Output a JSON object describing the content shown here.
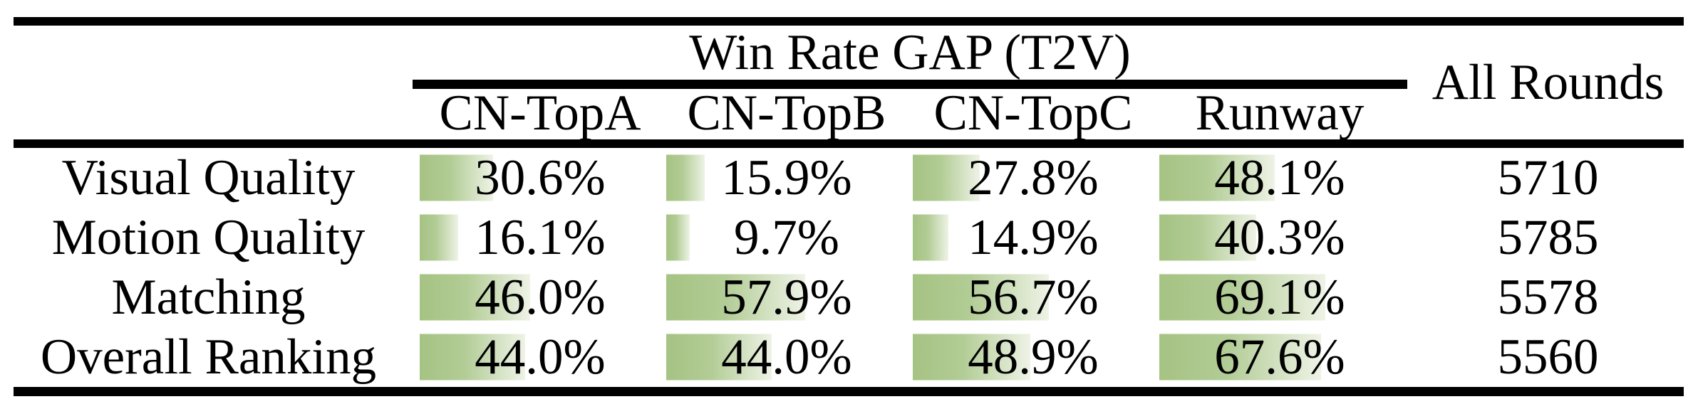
{
  "table": {
    "group_header": "Win Rate GAP (T2V)",
    "all_rounds_header": "All Rounds",
    "columns": [
      "CN-TopA",
      "CN-TopB",
      "CN-TopC",
      "Runway"
    ],
    "rows": [
      {
        "label": "Visual Quality",
        "cells": [
          "30.6%",
          "15.9%",
          "27.8%",
          "48.1%"
        ],
        "values": [
          30.6,
          15.9,
          27.8,
          48.1
        ],
        "all_rounds": "5710"
      },
      {
        "label": "Motion Quality",
        "cells": [
          "16.1%",
          "9.7%",
          "14.9%",
          "40.3%"
        ],
        "values": [
          16.1,
          9.7,
          14.9,
          40.3
        ],
        "all_rounds": "5785"
      },
      {
        "label": "Matching",
        "cells": [
          "46.0%",
          "57.9%",
          "56.7%",
          "69.1%"
        ],
        "values": [
          46.0,
          57.9,
          56.7,
          69.1
        ],
        "all_rounds": "5578"
      },
      {
        "label": "Overall Ranking",
        "cells": [
          "44.0%",
          "44.0%",
          "48.9%",
          "67.6%"
        ],
        "values": [
          44.0,
          44.0,
          48.9,
          67.6
        ],
        "all_rounds": "5560"
      }
    ],
    "colors": {
      "bar_gradient_start": "#a5c383",
      "bar_gradient_mid": "#b2cc95",
      "bar_gradient_end": "#eef3e6",
      "rule": "#000000",
      "background": "#ffffff",
      "text": "#000000"
    }
  },
  "chart_data": {
    "type": "table",
    "title": "Win Rate GAP (T2V)",
    "columns": [
      "CN-TopA",
      "CN-TopB",
      "CN-TopC",
      "Runway",
      "All Rounds"
    ],
    "row_labels": [
      "Visual Quality",
      "Motion Quality",
      "Matching",
      "Overall Ranking"
    ],
    "series": [
      {
        "name": "CN-TopA",
        "values": [
          30.6,
          16.1,
          46.0,
          44.0
        ]
      },
      {
        "name": "CN-TopB",
        "values": [
          15.9,
          9.7,
          57.9,
          44.0
        ]
      },
      {
        "name": "CN-TopC",
        "values": [
          27.8,
          14.9,
          56.7,
          48.9
        ]
      },
      {
        "name": "Runway",
        "values": [
          48.1,
          40.3,
          69.1,
          67.6
        ]
      }
    ],
    "all_rounds": [
      5710,
      5785,
      5578,
      5560
    ],
    "unit": "%",
    "bar_style": "left-aligned horizontal green gradient data bars behind each percentage, length proportional to value (100% = full column width)"
  }
}
